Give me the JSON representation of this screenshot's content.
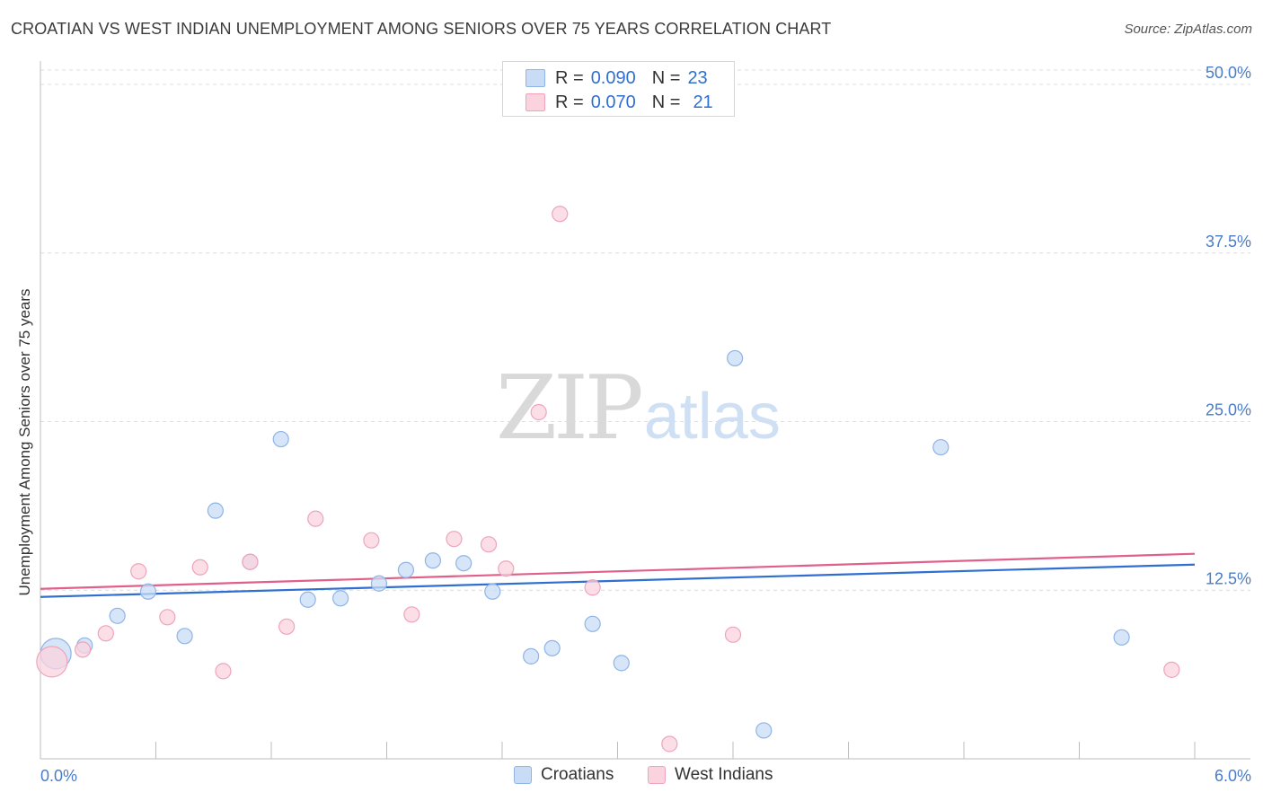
{
  "header": {
    "title": "CROATIAN VS WEST INDIAN UNEMPLOYMENT AMONG SENIORS OVER 75 YEARS CORRELATION CHART",
    "source": "Source: ZipAtlas.com"
  },
  "watermark": {
    "zip": "ZIP",
    "atlas": "atlas"
  },
  "legend": {
    "rows": [
      {
        "r_label": "R =",
        "r_value": "0.090",
        "n_label": "N =",
        "n_value": "23",
        "color": "#a9c8f0"
      },
      {
        "r_label": "R =",
        "r_value": "0.070",
        "n_label": "N =",
        "n_value": "21",
        "color": "#f5b8cb"
      }
    ]
  },
  "bottom_legend": {
    "croatians": "Croatians",
    "west_indians": "West Indians"
  },
  "colors": {
    "croatians_fill": "#c8dcf5",
    "croatians_stroke": "#8fb4e6",
    "croatians_line": "#2f6fd1",
    "west_indians_fill": "#fbd3df",
    "west_indians_stroke": "#eea4bc",
    "west_indians_line": "#e0608a",
    "grid": "#dcdcdc",
    "tick_label": "#4a7cc9"
  },
  "chart_data": {
    "type": "scatter",
    "title": "CROATIAN VS WEST INDIAN UNEMPLOYMENT AMONG SENIORS OVER 75 YEARS CORRELATION CHART",
    "xlabel": "",
    "ylabel": "Unemployment Among Seniors over 75 years",
    "xlim": [
      0,
      6
    ],
    "ylim": [
      0,
      51.6
    ],
    "x_tick_labels": [
      "0.0%",
      "6.0%"
    ],
    "y_ticks": [
      12.5,
      25.0,
      37.5,
      50.0
    ],
    "y_tick_labels": [
      "12.5%",
      "25.0%",
      "37.5%",
      "50.0%"
    ],
    "grid": true,
    "legend_position": "top-center",
    "series": [
      {
        "name": "Croatians",
        "points": [
          {
            "x": 0.08,
            "y": 7.8,
            "big": true
          },
          {
            "x": 0.23,
            "y": 8.4
          },
          {
            "x": 0.4,
            "y": 10.6
          },
          {
            "x": 0.56,
            "y": 12.4
          },
          {
            "x": 0.75,
            "y": 9.1
          },
          {
            "x": 0.91,
            "y": 18.4
          },
          {
            "x": 1.09,
            "y": 14.6
          },
          {
            "x": 1.25,
            "y": 23.7
          },
          {
            "x": 1.39,
            "y": 11.8
          },
          {
            "x": 1.56,
            "y": 11.9
          },
          {
            "x": 1.76,
            "y": 13.0
          },
          {
            "x": 1.9,
            "y": 14.0
          },
          {
            "x": 2.04,
            "y": 14.7
          },
          {
            "x": 2.2,
            "y": 14.5
          },
          {
            "x": 2.35,
            "y": 12.4
          },
          {
            "x": 2.55,
            "y": 7.6
          },
          {
            "x": 2.66,
            "y": 8.2
          },
          {
            "x": 2.87,
            "y": 10.0
          },
          {
            "x": 3.02,
            "y": 7.1
          },
          {
            "x": 3.61,
            "y": 29.7
          },
          {
            "x": 3.76,
            "y": 2.1
          },
          {
            "x": 4.68,
            "y": 23.1
          },
          {
            "x": 5.62,
            "y": 9.0
          }
        ],
        "trend": [
          [
            0,
            12.0
          ],
          [
            6,
            14.4
          ]
        ]
      },
      {
        "name": "West Indians",
        "points": [
          {
            "x": 0.06,
            "y": 7.2,
            "big": true
          },
          {
            "x": 0.22,
            "y": 8.1
          },
          {
            "x": 0.34,
            "y": 9.3
          },
          {
            "x": 0.51,
            "y": 13.9
          },
          {
            "x": 0.66,
            "y": 10.5
          },
          {
            "x": 0.83,
            "y": 14.2
          },
          {
            "x": 0.95,
            "y": 6.5
          },
          {
            "x": 1.09,
            "y": 14.6
          },
          {
            "x": 1.28,
            "y": 9.8
          },
          {
            "x": 1.43,
            "y": 17.8
          },
          {
            "x": 1.72,
            "y": 16.2
          },
          {
            "x": 1.93,
            "y": 10.7
          },
          {
            "x": 2.15,
            "y": 16.3
          },
          {
            "x": 2.33,
            "y": 15.9
          },
          {
            "x": 2.42,
            "y": 14.1
          },
          {
            "x": 2.59,
            "y": 25.7
          },
          {
            "x": 2.7,
            "y": 40.4
          },
          {
            "x": 2.87,
            "y": 12.7
          },
          {
            "x": 3.27,
            "y": 1.1
          },
          {
            "x": 3.6,
            "y": 9.2
          },
          {
            "x": 5.88,
            "y": 6.6
          }
        ],
        "trend": [
          [
            0,
            12.6
          ],
          [
            6,
            15.2
          ]
        ]
      }
    ]
  }
}
